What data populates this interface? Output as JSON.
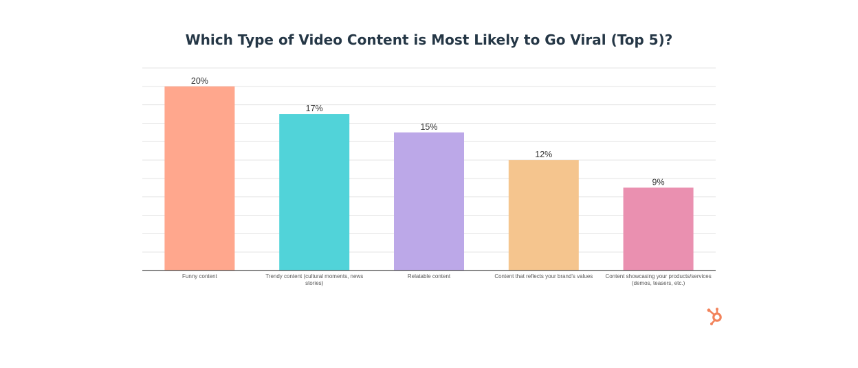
{
  "brand": {
    "logo_icon": "sprocket-logo-icon",
    "color": "#f2835b"
  },
  "chart_data": {
    "type": "bar",
    "title": "Which Type of Video Content is Most Likely to Go Viral (Top 5)?",
    "xlabel": "",
    "ylabel": "",
    "ylim": [
      0,
      22
    ],
    "grid": true,
    "categories": [
      [
        "Funny content"
      ],
      [
        "Trendy content (cultural moments, news",
        "stories)"
      ],
      [
        "Relatable content"
      ],
      [
        "Content that reflects your brand's values"
      ],
      [
        "Content showcasing your products/services",
        "(demos, teasers, etc.)"
      ]
    ],
    "values": [
      20,
      17,
      15,
      12,
      9
    ],
    "data_labels": [
      "20%",
      "17%",
      "15%",
      "12%",
      "9%"
    ],
    "colors": [
      "#ffa78d",
      "#51d3d9",
      "#bca8e8",
      "#f5c58e",
      "#ea90b0"
    ]
  }
}
